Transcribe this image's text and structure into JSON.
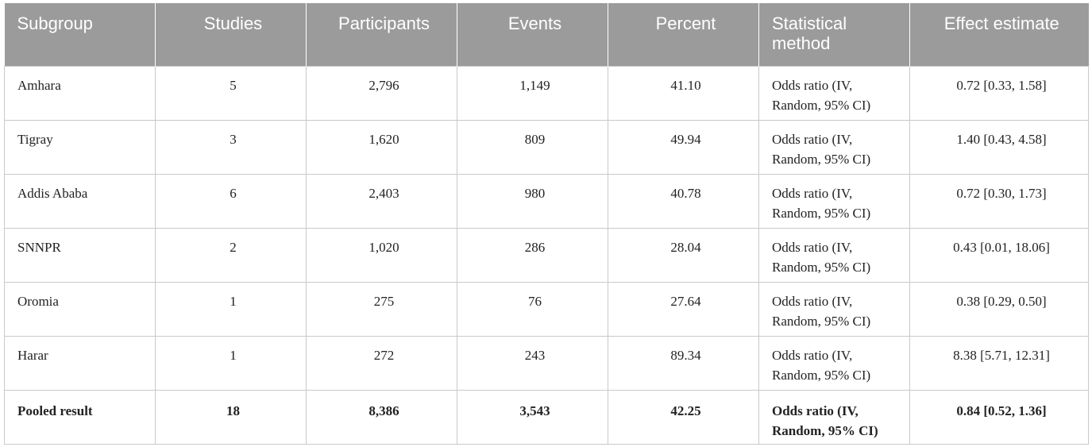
{
  "table": {
    "headers": [
      "Subgroup",
      "Studies",
      "Participants",
      "Events",
      "Percent",
      "Statistical method",
      "Effect estimate"
    ],
    "rows": [
      [
        "Amhara",
        "5",
        "2,796",
        "1,149",
        "41.10",
        "Odds ratio (IV, Random, 95% CI)",
        "0.72 [0.33, 1.58]"
      ],
      [
        "Tigray",
        "3",
        "1,620",
        "809",
        "49.94",
        "Odds ratio (IV, Random, 95% CI)",
        "1.40 [0.43, 4.58]"
      ],
      [
        "Addis Ababa",
        "6",
        "2,403",
        "980",
        "40.78",
        "Odds ratio (IV, Random, 95% CI)",
        "0.72 [0.30, 1.73]"
      ],
      [
        "SNNPR",
        "2",
        "1,020",
        "286",
        "28.04",
        "Odds ratio (IV, Random, 95% CI)",
        "0.43 [0.01, 18.06]"
      ],
      [
        "Oromia",
        "1",
        "275",
        "76",
        "27.64",
        "Odds ratio (IV, Random, 95% CI)",
        "0.38 [0.29, 0.50]"
      ],
      [
        "Harar",
        "1",
        "272",
        "243",
        "89.34",
        "Odds ratio (IV, Random, 95% CI)",
        "8.38 [5.71, 12.31]"
      ],
      [
        "Pooled result",
        "18",
        "8,386",
        "3,543",
        "42.25",
        "Odds ratio (IV, Random, 95% CI)",
        "0.84 [0.52, 1.36]"
      ]
    ]
  },
  "colors": {
    "header_bg": "#9b9b9b",
    "header_text": "#ffffff",
    "grid": "#c9c9c9"
  }
}
